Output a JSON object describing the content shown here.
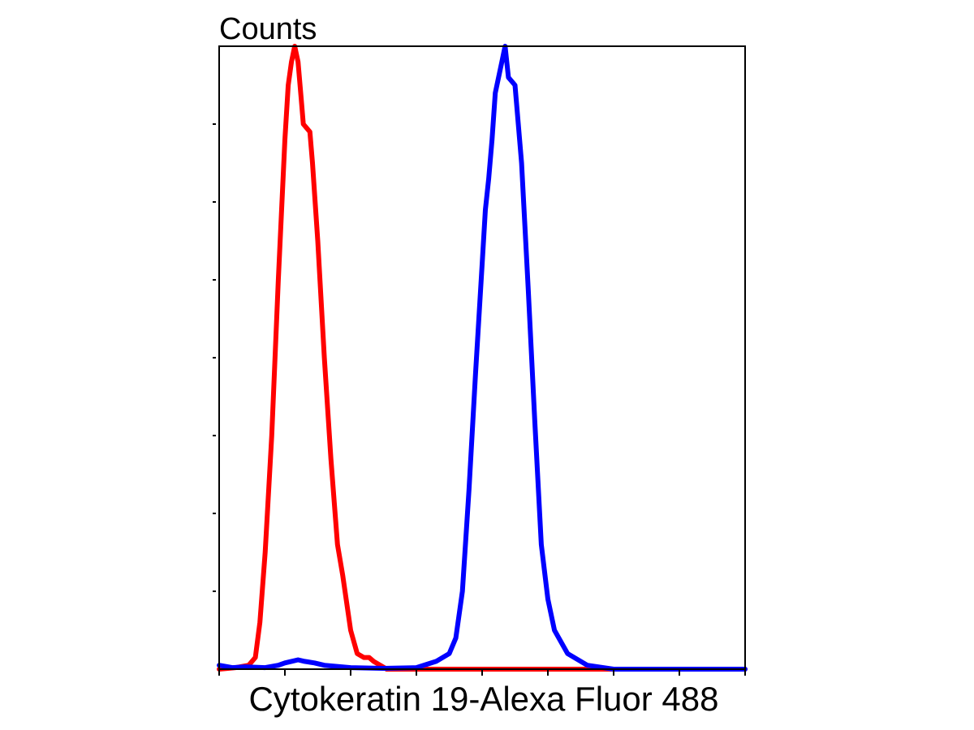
{
  "chart_data": {
    "type": "line",
    "title": "",
    "ylabel": "Counts",
    "xlabel": "Cytokeratin 19-Alexa Fluor 488",
    "xlim": [
      0,
      8
    ],
    "ylim": [
      0,
      8
    ],
    "x_ticks": [
      0,
      1,
      2,
      3,
      4,
      5,
      6,
      7,
      8
    ],
    "y_ticks": [
      1,
      2,
      3,
      4,
      5,
      6,
      7
    ],
    "grid": false,
    "legend": "none",
    "series": [
      {
        "color": "#ff0000",
        "x": [
          0.0,
          0.25,
          0.45,
          0.55,
          0.62,
          0.7,
          0.8,
          0.9,
          1.0,
          1.05,
          1.1,
          1.15,
          1.2,
          1.25,
          1.28,
          1.38,
          1.42,
          1.5,
          1.6,
          1.7,
          1.8,
          1.88,
          2.0,
          2.1,
          2.2,
          2.28,
          2.35,
          2.45,
          2.55,
          3.0,
          4.0,
          5.0,
          6.0,
          8.0
        ],
        "y": [
          0.0,
          0.02,
          0.05,
          0.15,
          0.6,
          1.5,
          3.0,
          5.0,
          6.8,
          7.5,
          7.8,
          8.0,
          7.8,
          7.3,
          7.0,
          6.9,
          6.5,
          5.5,
          4.0,
          2.7,
          1.6,
          1.2,
          0.5,
          0.2,
          0.15,
          0.15,
          0.1,
          0.05,
          0.0,
          0.0,
          0.0,
          0.0,
          0.0,
          0.0
        ]
      },
      {
        "color": "#0000ff",
        "x": [
          0.0,
          0.2,
          0.4,
          0.7,
          0.9,
          1.0,
          1.1,
          1.2,
          1.3,
          1.45,
          1.6,
          2.0,
          2.5,
          3.0,
          3.3,
          3.5,
          3.6,
          3.7,
          3.8,
          3.9,
          4.0,
          4.05,
          4.1,
          4.15,
          4.2,
          4.3,
          4.35,
          4.4,
          4.5,
          4.6,
          4.7,
          4.8,
          4.9,
          5.0,
          5.1,
          5.3,
          5.6,
          6.0,
          7.0,
          8.0
        ],
        "y": [
          0.05,
          0.02,
          0.03,
          0.02,
          0.05,
          0.08,
          0.1,
          0.12,
          0.1,
          0.08,
          0.05,
          0.02,
          0.01,
          0.02,
          0.1,
          0.2,
          0.4,
          1.0,
          2.3,
          3.8,
          5.2,
          5.9,
          6.3,
          6.8,
          7.4,
          7.8,
          8.0,
          7.6,
          7.5,
          6.5,
          4.9,
          3.2,
          1.6,
          0.9,
          0.5,
          0.2,
          0.05,
          0.0,
          0.0,
          0.0
        ]
      }
    ]
  }
}
